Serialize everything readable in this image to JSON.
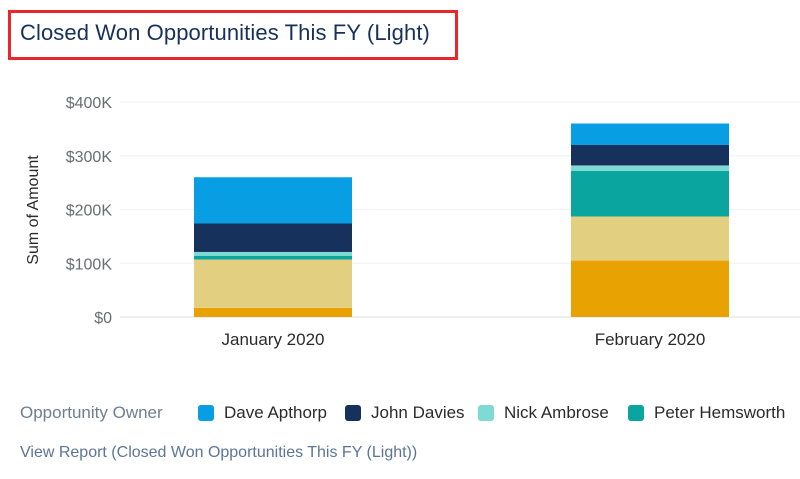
{
  "header": {
    "title": "Closed Won Opportunities This FY (Light)"
  },
  "legend": {
    "title": "Opportunity Owner",
    "items": [
      {
        "label": "Dave Apthorp",
        "color": "#079ee3"
      },
      {
        "label": "John Davies",
        "color": "#16325c"
      },
      {
        "label": "Nick Ambrose",
        "color": "#7edad4"
      },
      {
        "label": "Peter Hemsworth",
        "color": "#0aa59f"
      }
    ]
  },
  "footer": {
    "view_report": "View Report (Closed Won Opportunities This FY (Light))"
  },
  "chart_data": {
    "type": "bar",
    "stacked": true,
    "categories": [
      "January 2020",
      "February 2020"
    ],
    "ylabel": "Sum of Amount",
    "ylim": [
      0,
      400000
    ],
    "yticks": [
      {
        "value": 0,
        "label": "$0"
      },
      {
        "value": 100000,
        "label": "$100K"
      },
      {
        "value": 200000,
        "label": "$200K"
      },
      {
        "value": 300000,
        "label": "$300K"
      },
      {
        "value": 400000,
        "label": "$400K"
      }
    ],
    "grid": true,
    "series": [
      {
        "color": "#e8a202",
        "values": [
          17000,
          105000
        ]
      },
      {
        "color": "#e3cf80",
        "values": [
          90000,
          82000
        ]
      },
      {
        "name": "Peter Hemsworth",
        "color": "#0aa59f",
        "values": [
          7000,
          85000
        ]
      },
      {
        "name": "Nick Ambrose",
        "color": "#7edad4",
        "values": [
          7000,
          10000
        ]
      },
      {
        "name": "John Davies",
        "color": "#16325c",
        "values": [
          53000,
          38000
        ]
      },
      {
        "name": "Dave Apthorp",
        "color": "#079ee3",
        "values": [
          86000,
          40000
        ]
      }
    ]
  }
}
